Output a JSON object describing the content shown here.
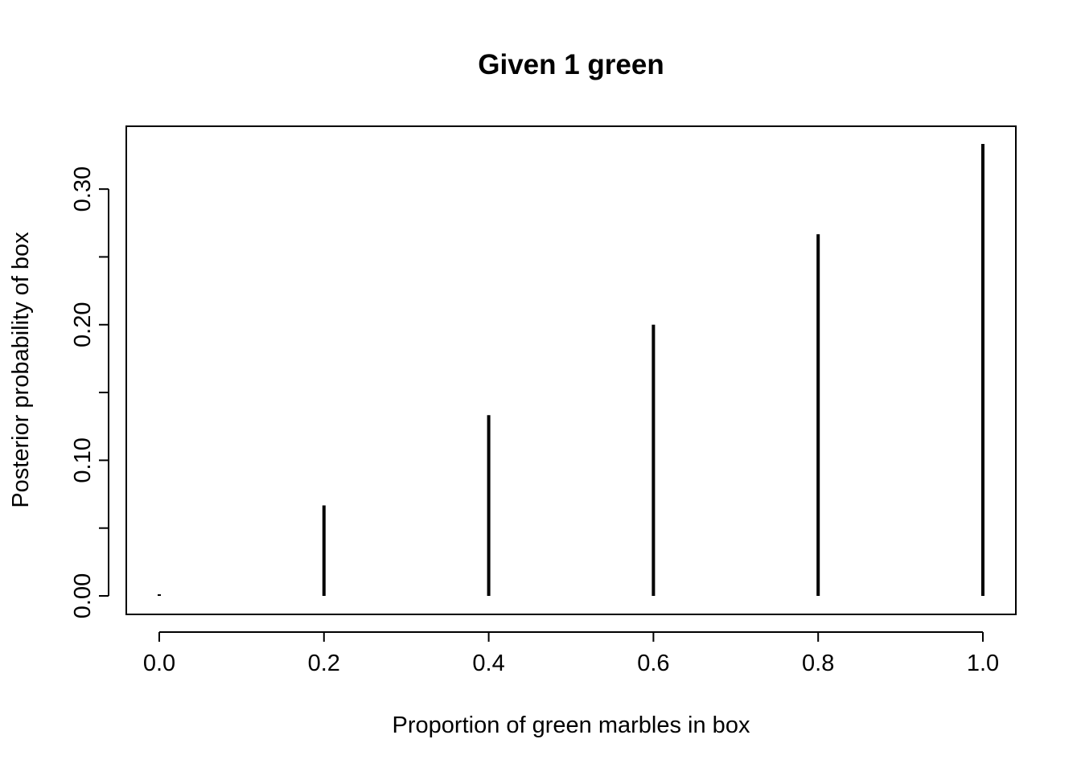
{
  "chart_data": {
    "type": "bar",
    "title": "Given 1 green",
    "xlabel": "Proportion of green marbles in box",
    "ylabel": "Posterior probability of box",
    "x": [
      0.0,
      0.2,
      0.4,
      0.6,
      0.8,
      1.0
    ],
    "values": [
      0.0,
      0.0667,
      0.1333,
      0.2,
      0.2667,
      0.3333
    ],
    "xlim": [
      0.0,
      1.0
    ],
    "ylim": [
      0.0,
      0.3333
    ],
    "x_ticks": [
      "0.0",
      "0.2",
      "0.4",
      "0.6",
      "0.8",
      "1.0"
    ],
    "x_tick_values": [
      0.0,
      0.2,
      0.4,
      0.6,
      0.8,
      1.0
    ],
    "y_ticks": [
      "0.00",
      "0.10",
      "0.20",
      "0.30"
    ],
    "y_tick_values": [
      0.0,
      0.1,
      0.2,
      0.3
    ],
    "y_minor_tick_values": [
      0.05,
      0.15,
      0.25
    ],
    "grid": false,
    "mark_style": "vertical lines (type h)",
    "color": "#000000"
  }
}
